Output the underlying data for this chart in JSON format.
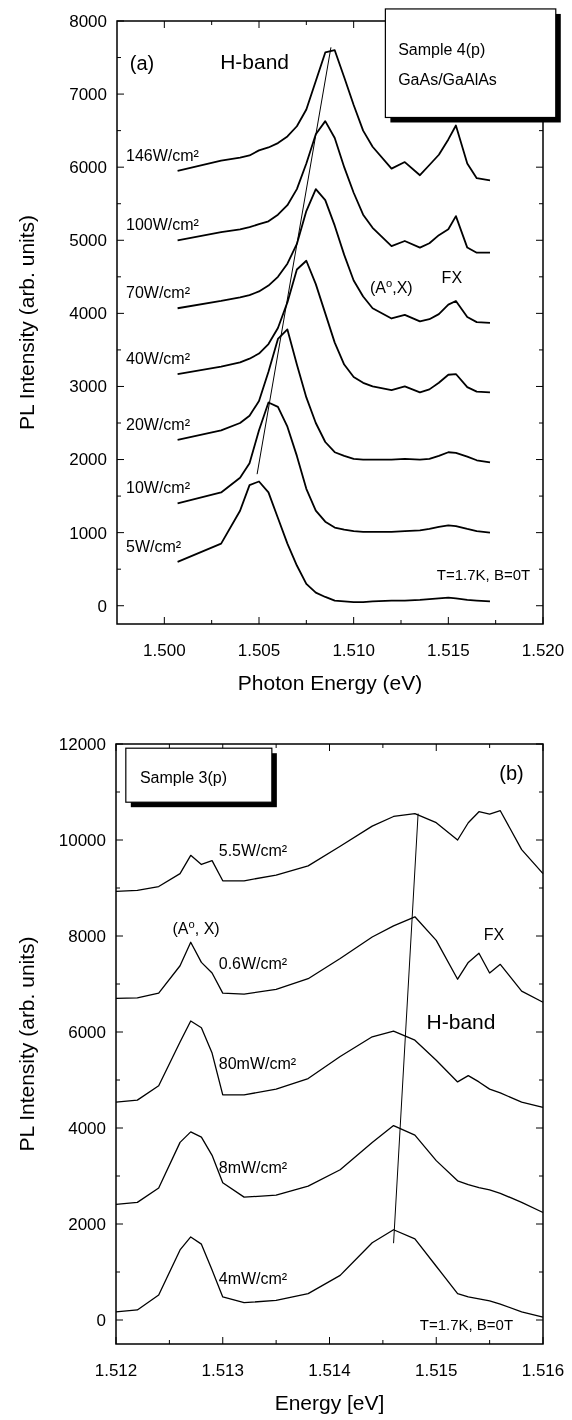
{
  "chart_data": [
    {
      "type": "line",
      "xlabel": "Photon Energy (eV)",
      "ylabel": "PL Intensity (arb. units)",
      "x": [
        1.5007,
        1.503,
        1.504,
        1.5045,
        1.505,
        1.5055,
        1.506,
        1.5065,
        1.507,
        1.5075,
        1.508,
        1.5085,
        1.509,
        1.5095,
        1.51,
        1.5105,
        1.511,
        1.512,
        1.5127,
        1.5135,
        1.514,
        1.5145,
        1.515,
        1.5154,
        1.516,
        1.5165,
        1.5172
      ],
      "xlim": [
        1.4975,
        1.52
      ],
      "ylim": [
        -250,
        8000
      ],
      "xticks": [
        {
          "value": 1.5,
          "label": "1.500"
        },
        {
          "value": 1.5025,
          "label": null
        },
        {
          "value": 1.505,
          "label": "1.505"
        },
        {
          "value": 1.5075,
          "label": null
        },
        {
          "value": 1.51,
          "label": "1.510"
        },
        {
          "value": 1.5125,
          "label": null
        },
        {
          "value": 1.515,
          "label": "1.515"
        },
        {
          "value": 1.5175,
          "label": null
        },
        {
          "value": 1.52,
          "label": "1.520"
        }
      ],
      "yticks": [
        0,
        {
          "value": 500,
          "label": null
        },
        1000,
        {
          "value": 1500,
          "label": null
        },
        2000,
        {
          "value": 2500,
          "label": null
        },
        3000,
        {
          "value": 3500,
          "label": null
        },
        4000,
        {
          "value": 4500,
          "label": null
        },
        5000,
        {
          "value": 5500,
          "label": null
        },
        6000,
        {
          "value": 6500,
          "label": null
        },
        7000,
        {
          "value": 7500,
          "label": null
        },
        8000
      ],
      "grid": false,
      "legend": false,
      "marker": "none",
      "line_style": "solid",
      "series": [
        {
          "name": "146W/cm²",
          "color": "#000000",
          "values": [
            5950,
            6090,
            6130,
            6160,
            6230,
            6270,
            6330,
            6420,
            6560,
            6790,
            7180,
            7570,
            7600,
            7230,
            6850,
            6500,
            6280,
            5980,
            6070,
            5890,
            6030,
            6170,
            6380,
            6570,
            6050,
            5850,
            5820
          ]
        },
        {
          "name": "100W/cm²",
          "color": "#000000",
          "values": [
            5000,
            5110,
            5150,
            5180,
            5220,
            5260,
            5350,
            5480,
            5700,
            6050,
            6450,
            6630,
            6400,
            6000,
            5650,
            5350,
            5170,
            4920,
            4990,
            4900,
            4960,
            5070,
            5150,
            5330,
            4900,
            4830,
            4830
          ]
        },
        {
          "name": "70W/cm²",
          "color": "#000000",
          "values": [
            4070,
            4170,
            4220,
            4250,
            4300,
            4380,
            4500,
            4680,
            4950,
            5400,
            5700,
            5550,
            5200,
            4800,
            4450,
            4230,
            4070,
            3930,
            3980,
            3890,
            3920,
            3990,
            4120,
            4170,
            3950,
            3880,
            3870
          ]
        },
        {
          "name": "40W/cm²",
          "color": "#000000",
          "values": [
            3170,
            3270,
            3330,
            3380,
            3450,
            3580,
            3800,
            4150,
            4600,
            4720,
            4400,
            4000,
            3600,
            3300,
            3130,
            3050,
            3000,
            2950,
            3000,
            2920,
            2960,
            3050,
            3160,
            3170,
            2990,
            2930,
            2920
          ]
        },
        {
          "name": "20W/cm²",
          "color": "#000000",
          "values": [
            2270,
            2400,
            2500,
            2600,
            2800,
            3200,
            3650,
            3780,
            3300,
            2850,
            2500,
            2240,
            2100,
            2050,
            2010,
            2000,
            2000,
            2000,
            2010,
            2000,
            2010,
            2050,
            2100,
            2090,
            2040,
            1990,
            1960
          ]
        },
        {
          "name": "10W/cm²",
          "color": "#000000",
          "values": [
            1400,
            1550,
            1750,
            1950,
            2400,
            2780,
            2720,
            2450,
            2050,
            1600,
            1300,
            1150,
            1070,
            1040,
            1020,
            1010,
            1010,
            1010,
            1020,
            1030,
            1050,
            1080,
            1100,
            1090,
            1050,
            1020,
            1000
          ]
        },
        {
          "name": "5W/cm²",
          "color": "#000000",
          "values": [
            600,
            850,
            1300,
            1650,
            1700,
            1550,
            1200,
            850,
            550,
            300,
            180,
            120,
            70,
            60,
            50,
            50,
            60,
            70,
            70,
            80,
            90,
            100,
            110,
            100,
            80,
            70,
            60
          ]
        },
        {
          "type": "line",
          "color": "#000000",
          "x": [
            1.5049,
            1.5088
          ],
          "values": [
            1800,
            7640
          ]
        }
      ],
      "annotations": [
        "(a)",
        "Sample 4(p)",
        "GaAs/GaAlAs",
        "T=1.7K, B=0T",
        "H-band",
        "(A$^{o}$,X)",
        "FX"
      ]
    },
    {
      "type": "line",
      "xlabel": "Energy [eV]",
      "ylabel": "PL Intensity (arb. units)",
      "x": [
        1.512,
        1.5122,
        1.5124,
        1.5126,
        1.5127,
        1.5128,
        1.5129,
        1.513,
        1.5132,
        1.5135,
        1.5138,
        1.5141,
        1.5144,
        1.5146,
        1.5148,
        1.515,
        1.5152,
        1.5153,
        1.5154,
        1.5155,
        1.5156,
        1.5158,
        1.516
      ],
      "xlim": [
        1.512,
        1.516
      ],
      "ylim": [
        -500,
        12000
      ],
      "xticks": [
        {
          "value": 1.512,
          "label": "1.512"
        },
        {
          "value": 1.5125,
          "label": null
        },
        {
          "value": 1.513,
          "label": "1.513"
        },
        {
          "value": 1.5135,
          "label": null
        },
        {
          "value": 1.514,
          "label": "1.514"
        },
        {
          "value": 1.5145,
          "label": null
        },
        {
          "value": 1.515,
          "label": "1.515"
        },
        {
          "value": 1.5155,
          "label": null
        },
        {
          "value": 1.516,
          "label": "1.516"
        }
      ],
      "yticks": [
        0,
        {
          "value": 1000,
          "label": null
        },
        2000,
        {
          "value": 3000,
          "label": null
        },
        4000,
        {
          "value": 5000,
          "label": null
        },
        6000,
        {
          "value": 7000,
          "label": null
        },
        8000,
        {
          "value": 9000,
          "label": null
        },
        10000,
        {
          "value": 11000,
          "label": null
        },
        12000
      ],
      "grid": false,
      "legend": false,
      "marker": "none",
      "line_style": "solid",
      "series": [
        {
          "name": "5.5W/cm²",
          "color": "#000000",
          "values": [
            8930,
            8950,
            9030,
            9300,
            9680,
            9490,
            9570,
            9150,
            9150,
            9270,
            9460,
            9870,
            10290,
            10490,
            10550,
            10360,
            10000,
            10360,
            10590,
            10540,
            10610,
            9800,
            9300
          ]
        },
        {
          "name": "0.6W/cm²",
          "color": "#000000",
          "values": [
            6700,
            6710,
            6810,
            7380,
            7870,
            7450,
            7230,
            6810,
            6790,
            6890,
            7110,
            7530,
            7980,
            8210,
            8400,
            7910,
            7100,
            7450,
            7640,
            7230,
            7410,
            6850,
            6620
          ]
        },
        {
          "name": "80mW/cm²",
          "color": "#000000",
          "values": [
            4540,
            4580,
            4880,
            5790,
            6230,
            6090,
            5560,
            4690,
            4690,
            4810,
            5030,
            5490,
            5900,
            6020,
            5830,
            5410,
            4960,
            5090,
            4960,
            4810,
            4730,
            4540,
            4430
          ]
        },
        {
          "name": "8mW/cm²",
          "color": "#000000",
          "values": [
            2410,
            2450,
            2750,
            3700,
            3920,
            3810,
            3430,
            2860,
            2560,
            2600,
            2790,
            3130,
            3700,
            4050,
            3850,
            3320,
            2900,
            2820,
            2760,
            2710,
            2640,
            2450,
            2240
          ]
        },
        {
          "name": "4mW/cm²",
          "color": "#000000",
          "values": [
            170,
            210,
            520,
            1460,
            1730,
            1580,
            1040,
            480,
            360,
            410,
            550,
            930,
            1610,
            1880,
            1690,
            1120,
            550,
            480,
            440,
            400,
            330,
            170,
            60
          ]
        },
        {
          "type": "line",
          "color": "#000000",
          "x": [
            1.5146,
            1.51483
          ],
          "values": [
            1600,
            10550
          ]
        }
      ],
      "annotations": [
        "Sample 3(p)",
        "(b)",
        "T=1.7K, B=0T",
        "(A$^{o}$, X)",
        "FX",
        "H-band"
      ]
    }
  ]
}
